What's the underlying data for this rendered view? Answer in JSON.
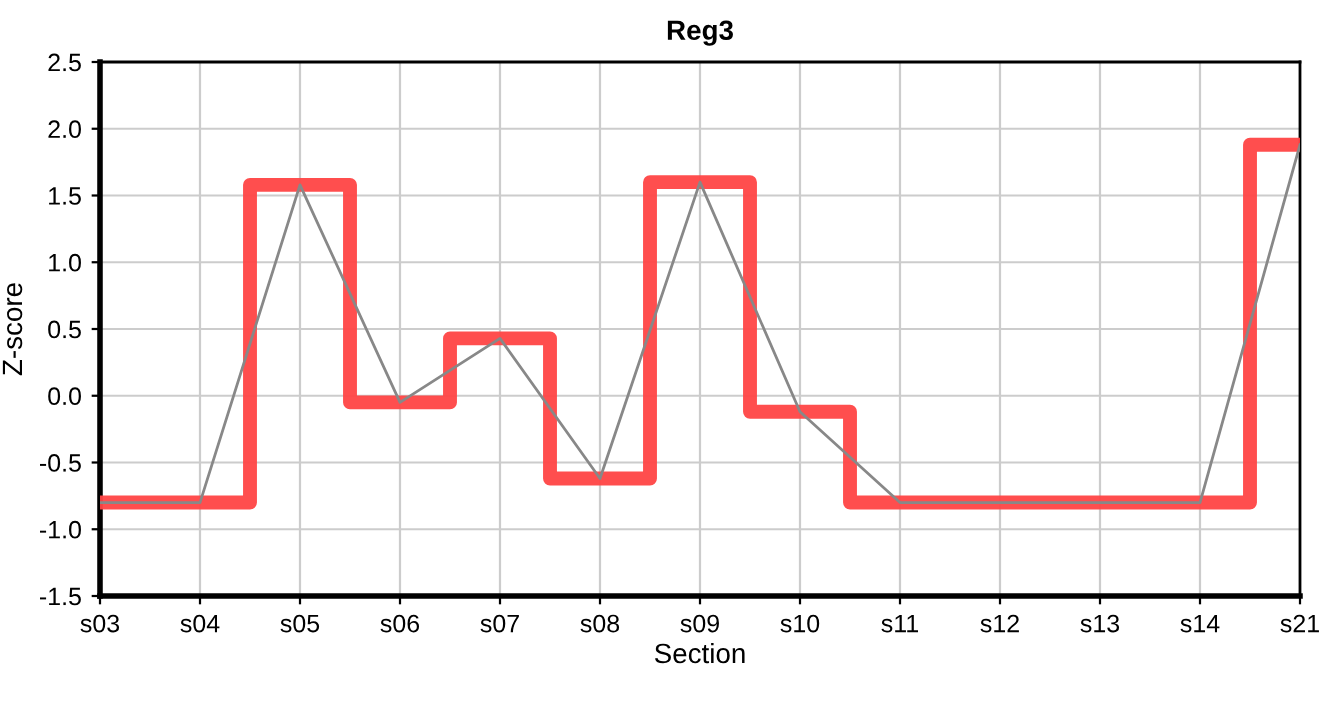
{
  "chart_data": {
    "type": "step",
    "title": "Reg3",
    "xlabel": "Section",
    "ylabel": "Z-score",
    "categories": [
      "s03",
      "s04",
      "s05",
      "s06",
      "s07",
      "s08",
      "s09",
      "s10",
      "s11",
      "s12",
      "s13",
      "s14",
      "s21"
    ],
    "series": [
      {
        "color": "#ff4444",
        "values": [
          -0.8,
          -0.8,
          1.58,
          -0.05,
          0.43,
          -0.62,
          1.6,
          -0.12,
          -0.8,
          -0.8,
          -0.8,
          -0.8,
          1.88
        ]
      },
      {
        "type": "line",
        "color": "#888888",
        "values": [
          -0.8,
          -0.8,
          1.58,
          -0.05,
          0.43,
          -0.62,
          1.6,
          -0.12,
          -0.8,
          -0.8,
          -0.8,
          -0.8,
          1.88
        ]
      }
    ],
    "ylim": [
      -1.5,
      2.5
    ],
    "yticks": [
      {
        "value": -1.5,
        "label": "-1.5"
      },
      {
        "value": -1.0,
        "label": "-1.0"
      },
      {
        "value": -0.5,
        "label": "-0.5"
      },
      {
        "value": 0.0,
        "label": "0.0"
      },
      {
        "value": 0.5,
        "label": "0.5"
      },
      {
        "value": 1.0,
        "label": "1.0"
      },
      {
        "value": 1.5,
        "label": "1.5"
      },
      {
        "value": 2.0,
        "label": "2.0"
      },
      {
        "value": 2.5,
        "label": "2.5"
      }
    ],
    "grid": true
  }
}
